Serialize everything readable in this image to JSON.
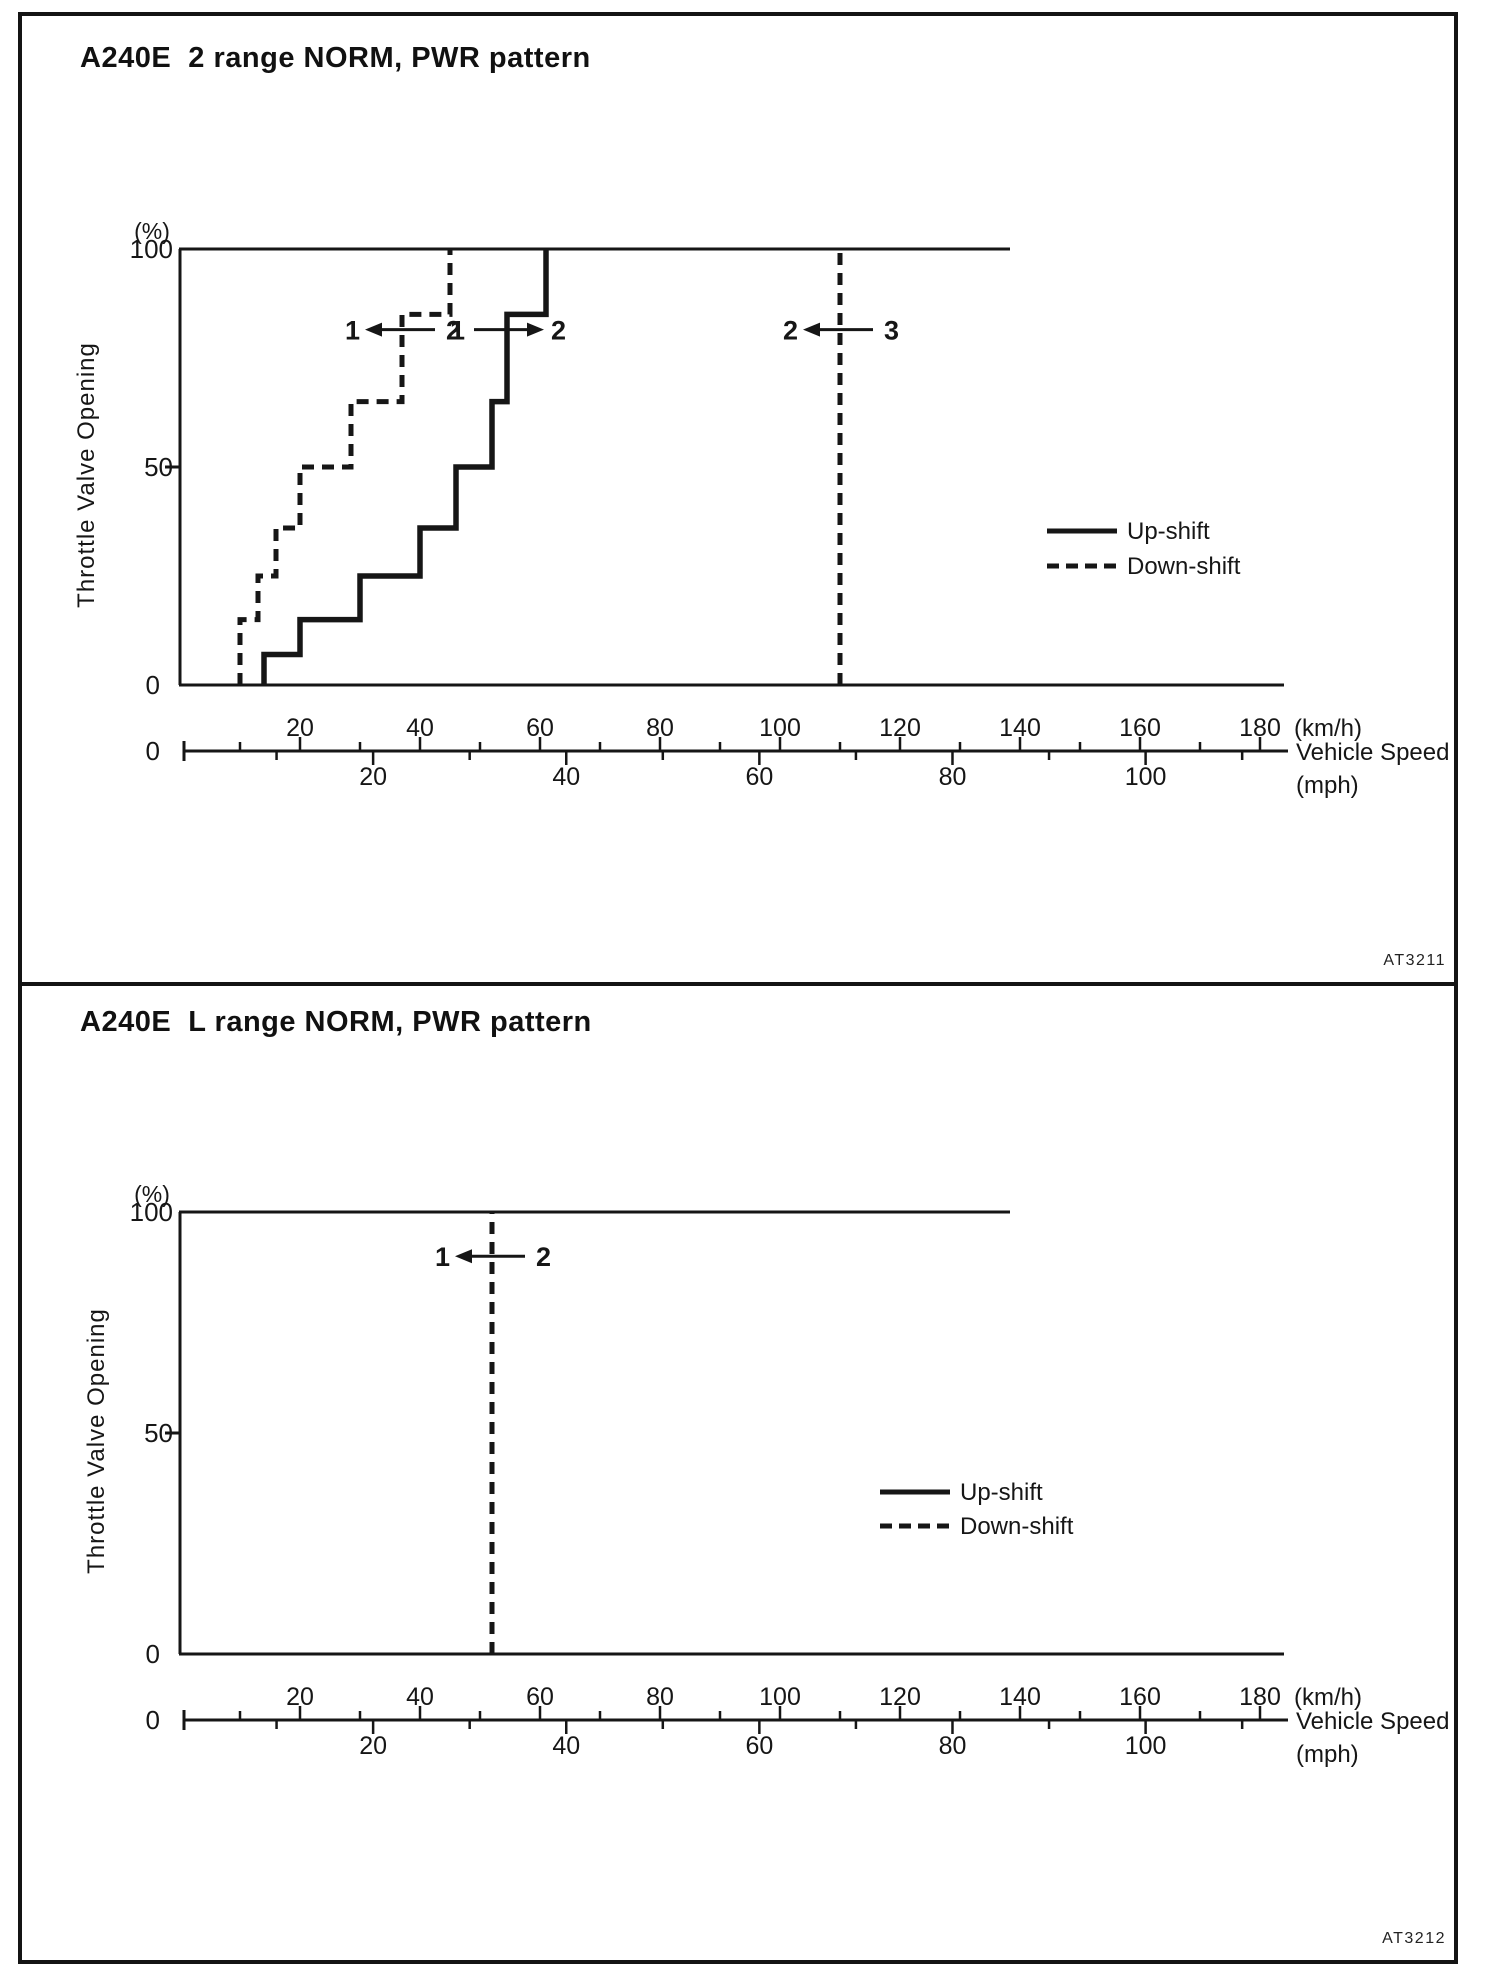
{
  "page": {
    "background": "#ffffff",
    "ink": "#161616"
  },
  "charts": [
    {
      "title": "A240E  2 range NORM, PWR pattern",
      "code": "AT3211",
      "y_axis": {
        "unit": "(%)",
        "label": "Throttle Valve Opening",
        "tick_labels": [
          "100",
          "50",
          "0"
        ]
      },
      "x_axis": {
        "origin": "0",
        "kmh_labels": [
          20,
          40,
          60,
          80,
          100,
          120,
          140,
          160,
          180
        ],
        "kmh_unit": "(km/h)",
        "mph_labels": [
          20,
          40,
          60,
          80,
          100
        ],
        "mph_unit": "(mph)",
        "label": "Vehicle Speed"
      },
      "legend": [
        {
          "style": "solid",
          "label": "Up-shift"
        },
        {
          "style": "dashed",
          "label": "Down-shift"
        }
      ],
      "chart_data": {
        "type": "line",
        "title": "A240E 2 range NORM, PWR pattern",
        "xlabel": "Vehicle Speed",
        "x_units": [
          "km/h",
          "mph"
        ],
        "ylabel": "Throttle Valve Opening (%)",
        "xlim_kmh": [
          0,
          190
        ],
        "ylim": [
          0,
          100
        ],
        "grid": false,
        "series": [
          {
            "name": "Up-shift 1→2",
            "style": "solid",
            "points": [
              [
                14,
                0
              ],
              [
                14,
                7
              ],
              [
                20,
                7
              ],
              [
                20,
                15
              ],
              [
                30,
                15
              ],
              [
                30,
                25
              ],
              [
                40,
                25
              ],
              [
                40,
                36
              ],
              [
                46,
                36
              ],
              [
                46,
                50
              ],
              [
                52,
                50
              ],
              [
                52,
                65
              ],
              [
                54.5,
                65
              ],
              [
                54.5,
                85
              ],
              [
                61,
                85
              ],
              [
                61,
                100
              ]
            ]
          },
          {
            "name": "Down-shift 2→1",
            "style": "dashed",
            "points": [
              [
                10,
                0
              ],
              [
                10,
                15
              ],
              [
                13,
                15
              ],
              [
                13,
                25
              ],
              [
                16,
                25
              ],
              [
                16,
                36
              ],
              [
                20,
                36
              ],
              [
                20,
                50
              ],
              [
                28.5,
                50
              ],
              [
                28.5,
                65
              ],
              [
                37,
                65
              ],
              [
                37,
                85
              ],
              [
                45,
                85
              ],
              [
                45,
                100
              ]
            ]
          },
          {
            "name": "Down-shift 3→2",
            "style": "dashed",
            "points": [
              [
                110,
                0
              ],
              [
                110,
                100
              ]
            ]
          }
        ],
        "annotations": [
          {
            "left": "1",
            "right": "2",
            "arrow_dir": "left",
            "at_kmh": 37,
            "at_pct": 81.5
          },
          {
            "left": "1",
            "right": "2",
            "arrow_dir": "right",
            "at_kmh": 54.5,
            "at_pct": 81.5
          },
          {
            "left": "2",
            "right": "3",
            "arrow_dir": "left",
            "at_kmh": 110,
            "at_pct": 81.5
          }
        ]
      }
    },
    {
      "title": "A240E  L range NORM, PWR pattern",
      "code": "AT3212",
      "y_axis": {
        "unit": "(%)",
        "label": "Throttle Valve Opening",
        "tick_labels": [
          "100",
          "50",
          "0"
        ]
      },
      "x_axis": {
        "origin": "0",
        "kmh_labels": [
          20,
          40,
          60,
          80,
          100,
          120,
          140,
          160,
          180
        ],
        "kmh_unit": "(km/h)",
        "mph_labels": [
          20,
          40,
          60,
          80,
          100
        ],
        "mph_unit": "(mph)",
        "label": "Vehicle Speed"
      },
      "legend": [
        {
          "style": "solid",
          "label": "Up-shift"
        },
        {
          "style": "dashed",
          "label": "Down-shift"
        }
      ],
      "chart_data": {
        "type": "line",
        "title": "A240E L range NORM, PWR pattern",
        "xlabel": "Vehicle Speed",
        "x_units": [
          "km/h",
          "mph"
        ],
        "ylabel": "Throttle Valve Opening (%)",
        "xlim_kmh": [
          0,
          190
        ],
        "ylim": [
          0,
          100
        ],
        "grid": false,
        "series": [
          {
            "name": "Down-shift 2→1",
            "style": "dashed",
            "points": [
              [
                52,
                0
              ],
              [
                52,
                100
              ]
            ]
          }
        ],
        "annotations": [
          {
            "left": "1",
            "right": "2",
            "arrow_dir": "left",
            "at_kmh": 52,
            "at_pct": 90
          }
        ]
      }
    }
  ]
}
